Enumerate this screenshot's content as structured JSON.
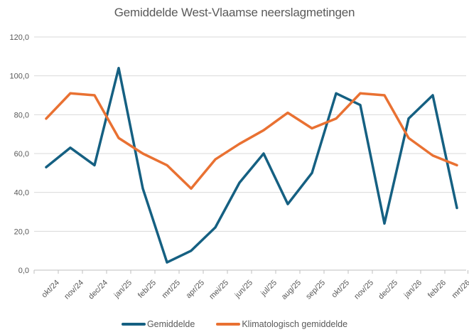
{
  "title": "Gemiddelde West-Vlaamse neerslagmetingen",
  "colors": {
    "series_gemiddelde": "#156082",
    "series_klimatologisch": "#E97132",
    "grid": "#D9D9D9",
    "axis": "#BFBFBF",
    "text": "#595959"
  },
  "chart_data": {
    "type": "line",
    "title": "Gemiddelde West-Vlaamse neerslagmetingen",
    "categories": [
      "okt/24",
      "nov/24",
      "dec/24",
      "jan/25",
      "feb/25",
      "mrt/25",
      "apr/25",
      "mei/25",
      "jun/25",
      "jul/25",
      "aug/25",
      "sep/25",
      "okt/25",
      "nov/25",
      "dec/25",
      "jan/26",
      "feb/26",
      "mrt/26"
    ],
    "series": [
      {
        "name": "Gemiddelde",
        "color": "#156082",
        "values": [
          53,
          63,
          54,
          104,
          42,
          4,
          10,
          22,
          45,
          60,
          34,
          50,
          91,
          85,
          24,
          78,
          90,
          32
        ]
      },
      {
        "name": "Klimatologisch gemiddelde",
        "color": "#E97132",
        "values": [
          78,
          91,
          90,
          68,
          60,
          54,
          42,
          57,
          65,
          72,
          81,
          73,
          78,
          91,
          90,
          68,
          59,
          54
        ]
      }
    ],
    "xlabel": "",
    "ylabel": "",
    "ylim": [
      0,
      120
    ],
    "yticks": [
      {
        "value": 120,
        "label": "120,0"
      },
      {
        "value": 100,
        "label": "100,0"
      },
      {
        "value": 80,
        "label": "80,0"
      },
      {
        "value": 60,
        "label": "60,0"
      },
      {
        "value": 40,
        "label": "40,0"
      },
      {
        "value": 20,
        "label": "20,0"
      },
      {
        "value": 0,
        "label": "0,0"
      }
    ],
    "grid": true,
    "legend_position": "bottom",
    "x_tick_label_rotation": -45
  }
}
